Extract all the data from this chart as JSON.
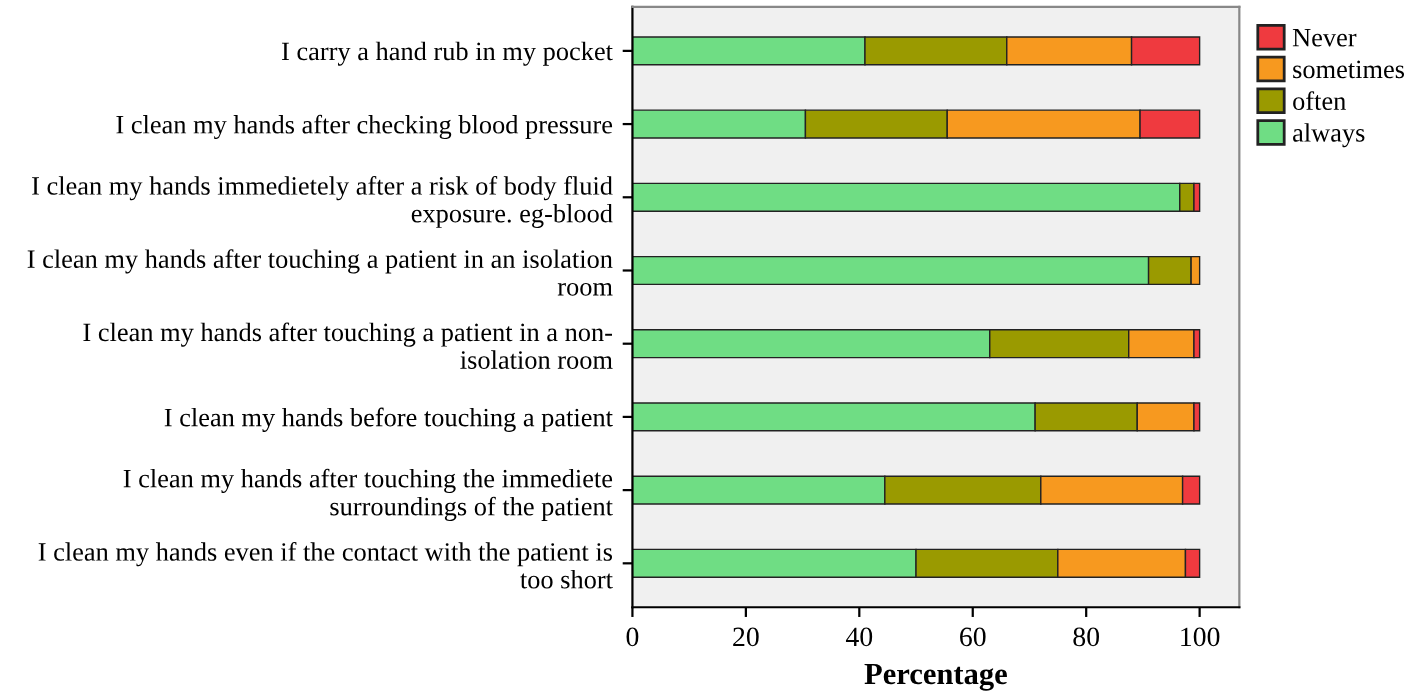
{
  "chart_data": {
    "type": "bar",
    "orientation": "horizontal",
    "stacked": true,
    "xlabel": "Percentage",
    "categories": [
      "I carry a hand rub in my pocket",
      "I clean my hands after checking blood pressure",
      "I clean my hands immedietely after a risk of body fluid\nexposure. eg-blood",
      "I clean my hands after touching a patient in an isolation\nroom",
      "I clean my hands after touching a patient in a non-\nisolation room",
      "I clean my hands before touching a patient",
      "I clean my hands after touching the immediete\nsurroundings of the patient",
      "I clean my hands even if the contact with the patient is\ntoo short"
    ],
    "series": [
      {
        "name": "always",
        "color": "#6fdd84",
        "values": [
          41,
          30.5,
          96.5,
          91,
          63,
          71,
          44.5,
          50
        ]
      },
      {
        "name": "often",
        "color": "#9a9a00",
        "values": [
          25,
          25,
          2.5,
          7.5,
          24.5,
          18,
          27.5,
          25
        ]
      },
      {
        "name": "sometimes",
        "color": "#f7991f",
        "values": [
          22,
          34,
          0,
          1.5,
          11.5,
          10,
          25,
          22.5
        ]
      },
      {
        "name": "Never",
        "color": "#ef3a3f",
        "values": [
          12,
          10.5,
          1,
          0,
          1,
          1,
          3,
          2.5
        ]
      }
    ],
    "xlim": [
      0,
      107
    ],
    "xticks": [
      0,
      20,
      40,
      60,
      80,
      100
    ],
    "legend": "top right",
    "grid": false
  }
}
